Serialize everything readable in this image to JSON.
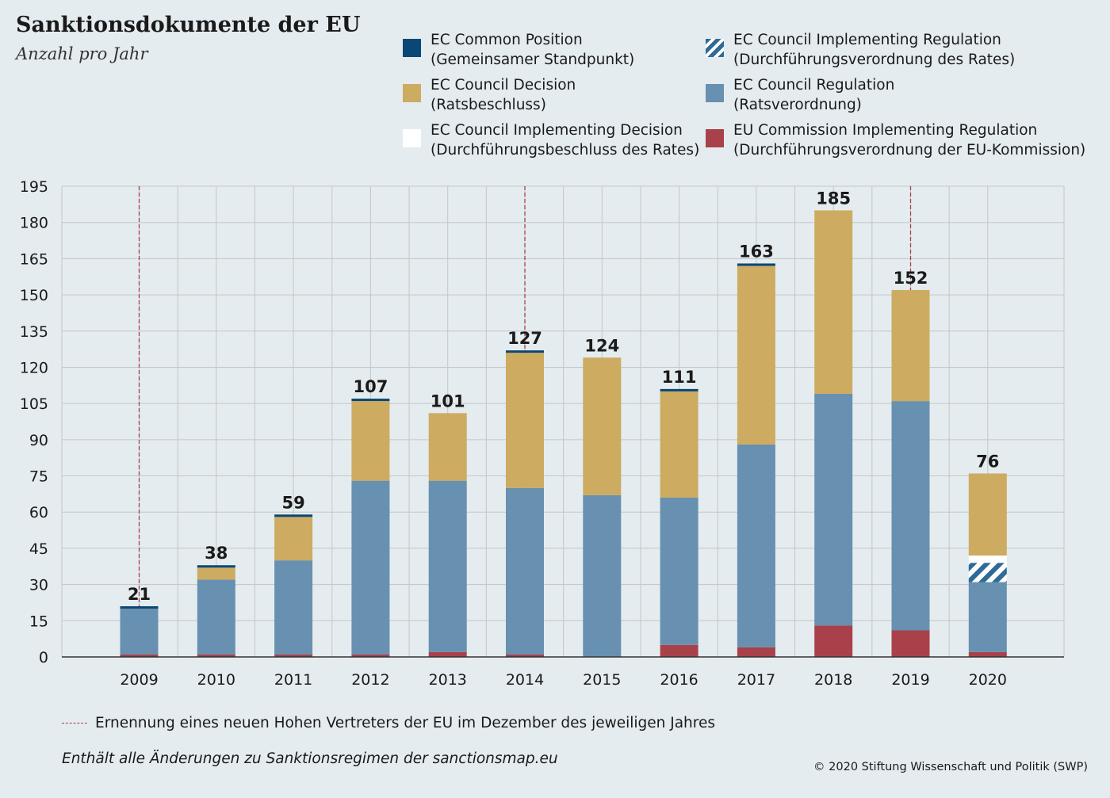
{
  "chart_data": {
    "type": "bar",
    "stacked": true,
    "title": "Sanktionsdokumente der EU",
    "subtitle": "Anzahl pro Jahr",
    "categories": [
      "2009",
      "2010",
      "2011",
      "2012",
      "2013",
      "2014",
      "2015",
      "2016",
      "2017",
      "2018",
      "2019",
      "2020"
    ],
    "ylim": [
      0,
      195
    ],
    "yticks": [
      0,
      15,
      30,
      45,
      60,
      75,
      90,
      105,
      120,
      135,
      150,
      165,
      180,
      195
    ],
    "grid": true,
    "legend_position": "top-right",
    "series": [
      {
        "name_line1": "EU Commission Implementing Regulation",
        "name_line2": "(Durchführungsverordnung der EU-Kommission)",
        "color": "#a8414a",
        "pattern": "solid",
        "values": [
          1,
          1,
          1,
          1,
          2,
          1,
          0,
          5,
          4,
          13,
          11,
          2
        ]
      },
      {
        "name_line1": "EC Council Regulation",
        "name_line2": "(Ratsverordnung)",
        "color": "#6890b0",
        "pattern": "solid",
        "values": [
          19,
          31,
          39,
          72,
          71,
          69,
          67,
          61,
          84,
          96,
          95,
          29
        ]
      },
      {
        "name_line1": "EC Council Implementing Regulation",
        "name_line2": "(Durchführungsverordnung des Rates)",
        "color": "#2e6b96",
        "pattern": "hatched",
        "values": [
          0,
          0,
          0,
          0,
          0,
          0,
          0,
          0,
          0,
          0,
          0,
          8
        ]
      },
      {
        "name_line1": "EC Council Implementing Decision",
        "name_line2": "(Durchführungsbeschluss des Rates)",
        "color": "#ffffff",
        "pattern": "solid",
        "values": [
          0,
          0,
          0,
          0,
          0,
          0,
          0,
          0,
          0,
          0,
          0,
          3
        ]
      },
      {
        "name_line1": "EC Council Decision",
        "name_line2": "(Ratsbeschluss)",
        "color": "#cdab60",
        "pattern": "solid",
        "values": [
          0,
          5,
          18,
          33,
          28,
          56,
          57,
          44,
          74,
          76,
          46,
          34
        ]
      },
      {
        "name_line1": "EC Common Position",
        "name_line2": "(Gemeinsamer Standpunkt)",
        "color": "#0b4774",
        "pattern": "solid",
        "values": [
          1,
          1,
          1,
          1,
          0,
          1,
          0,
          1,
          1,
          0,
          0,
          0
        ]
      }
    ],
    "totals": [
      21,
      38,
      59,
      107,
      101,
      127,
      124,
      111,
      163,
      185,
      152,
      76
    ],
    "highlight_years": [
      "2009",
      "2014",
      "2019"
    ]
  },
  "legend_order": [
    "EC Common Position",
    "EC Council Implementing Regulation",
    "EC Council Decision",
    "EC Council Regulation",
    "EC Council Implementing Decision",
    "EU Commission Implementing Regulation"
  ],
  "notes": {
    "dashed_line_note": "Ernennung eines neuen Hohen Vertreters der EU im Dezember des jeweiligen Jahres",
    "source": "Enthält alle Änderungen zu Sanktionsregimen der sanctionsmap.eu",
    "copyright": "© 2020 Stiftung Wissenschaft und Politik (SWP)"
  },
  "colors": {
    "background": "#e4ecef",
    "grid": "#c3c6c8",
    "axis": "#333333",
    "highlight_line": "#a9404a"
  }
}
